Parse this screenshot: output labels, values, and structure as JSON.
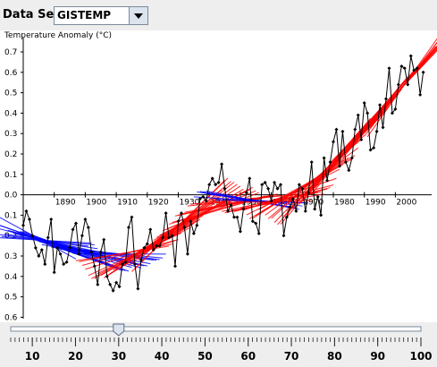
{
  "toolbar": {
    "dataset_label": "Data Set:",
    "dataset_value": "GISTEMP"
  },
  "colors": {
    "data_line": "#000000",
    "blue_fits": "#0000ff",
    "red_fits": "#ff0000",
    "plot_bg": "#ffffff",
    "panel_bg": "#eeeeee"
  },
  "chart_data": {
    "type": "line",
    "ylabel": "Temperature Anomaly (°C)",
    "ylim": [
      -0.6,
      0.8
    ],
    "xlim": [
      1880,
      2010
    ],
    "x_ticks": [
      1890,
      1900,
      1910,
      1920,
      1930,
      1940,
      1950,
      1960,
      1970,
      1980,
      1990,
      2000
    ],
    "x_tick_labels": [
      "1890",
      "1900",
      "1910",
      "1920",
      "1930",
      "1940",
      "1950",
      "1960",
      "1970",
      "1980",
      "1990",
      "2000"
    ],
    "y_ticks": [
      0.7,
      0.6,
      0.5,
      0.4,
      0.3,
      0.2,
      0.1,
      0.0,
      -0.1,
      -0.2,
      -0.3,
      -0.4,
      -0.5,
      -0.6
    ],
    "y_tick_labels": [
      "0.7",
      "0.6",
      "0.5",
      "0.4",
      "0.3",
      "0.2",
      "0.1",
      "0.0",
      "0.1",
      "0.2",
      "0.3",
      "0.4",
      "0.5",
      "0.6"
    ],
    "series": [
      {
        "x": [
          1880,
          1881,
          1882,
          1883,
          1884,
          1885,
          1886,
          1887,
          1888,
          1889,
          1890,
          1891,
          1892,
          1893,
          1894,
          1895,
          1896,
          1897,
          1898,
          1899,
          1900,
          1901,
          1902,
          1903,
          1904,
          1905,
          1906,
          1907,
          1908,
          1909,
          1910,
          1911,
          1912,
          1913,
          1914,
          1915,
          1916,
          1917,
          1918,
          1919,
          1920,
          1921,
          1922,
          1923,
          1924,
          1925,
          1926,
          1927,
          1928,
          1929,
          1930,
          1931,
          1932,
          1933,
          1934,
          1935,
          1936,
          1937,
          1938,
          1939,
          1940,
          1941,
          1942,
          1943,
          1944,
          1945,
          1946,
          1947,
          1948,
          1949,
          1950,
          1951,
          1952,
          1953,
          1954,
          1955,
          1956,
          1957,
          1958,
          1959,
          1960,
          1961,
          1962,
          1963,
          1964,
          1965,
          1966,
          1967,
          1968,
          1969,
          1970,
          1971,
          1972,
          1973,
          1974,
          1975,
          1976,
          1977,
          1978,
          1979,
          1980,
          1981,
          1982,
          1983,
          1984,
          1985,
          1986,
          1987,
          1988,
          1989,
          1990,
          1991,
          1992,
          1993,
          1994,
          1995,
          1996,
          1997,
          1998,
          1999,
          2000,
          2001,
          2002,
          2003,
          2004,
          2005,
          2006,
          2007,
          2008,
          2009
        ],
        "y": [
          -0.15,
          -0.08,
          -0.12,
          -0.2,
          -0.26,
          -0.3,
          -0.27,
          -0.34,
          -0.21,
          -0.12,
          -0.38,
          -0.26,
          -0.29,
          -0.34,
          -0.33,
          -0.26,
          -0.17,
          -0.14,
          -0.29,
          -0.2,
          -0.12,
          -0.16,
          -0.28,
          -0.35,
          -0.44,
          -0.28,
          -0.22,
          -0.4,
          -0.44,
          -0.47,
          -0.43,
          -0.45,
          -0.34,
          -0.33,
          -0.16,
          -0.11,
          -0.34,
          -0.46,
          -0.32,
          -0.26,
          -0.24,
          -0.17,
          -0.27,
          -0.25,
          -0.25,
          -0.21,
          -0.09,
          -0.21,
          -0.2,
          -0.35,
          -0.13,
          -0.09,
          -0.16,
          -0.29,
          -0.13,
          -0.19,
          -0.15,
          -0.02,
          -0.01,
          -0.03,
          0.05,
          0.08,
          0.05,
          0.06,
          0.15,
          0.03,
          -0.08,
          -0.05,
          -0.11,
          -0.11,
          -0.18,
          -0.07,
          0.01,
          0.08,
          -0.13,
          -0.14,
          -0.19,
          0.05,
          0.06,
          0.03,
          -0.03,
          0.06,
          0.03,
          0.05,
          -0.2,
          -0.11,
          -0.06,
          -0.02,
          -0.08,
          0.05,
          0.03,
          -0.08,
          0.01,
          0.16,
          -0.07,
          -0.01,
          -0.1,
          0.18,
          0.07,
          0.16,
          0.26,
          0.32,
          0.14,
          0.31,
          0.16,
          0.12,
          0.18,
          0.32,
          0.39,
          0.27,
          0.45,
          0.4,
          0.22,
          0.23,
          0.31,
          0.44,
          0.33,
          0.47,
          0.62,
          0.4,
          0.42,
          0.54,
          0.63,
          0.62,
          0.54,
          0.68,
          0.61,
          0.62,
          0.49,
          0.6
        ]
      }
    ]
  },
  "slider": {
    "value": 30,
    "min": 5,
    "max": 100,
    "major_ticks": [
      10,
      20,
      30,
      40,
      50,
      60,
      70,
      80,
      90,
      100
    ],
    "major_labels": [
      "10",
      "20",
      "30",
      "40",
      "50",
      "60",
      "70",
      "80",
      "90",
      "100"
    ]
  }
}
